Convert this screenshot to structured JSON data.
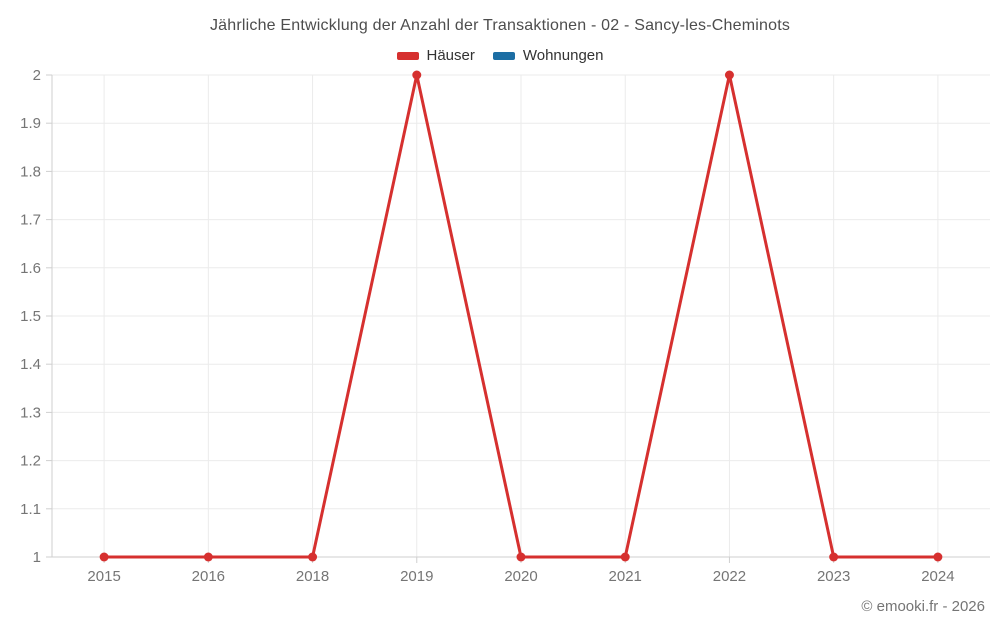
{
  "title": "Jährliche Entwicklung der Anzahl der Transaktionen - 02 - Sancy-les-Cheminots",
  "footer": "© emooki.fr - 2026",
  "legend": [
    {
      "label": "Häuser",
      "color": "#d6302f"
    },
    {
      "label": "Wohnungen",
      "color": "#1c6ea4"
    }
  ],
  "colors": {
    "series_red": "#d6302f",
    "series_blue": "#1c6ea4",
    "gridline": "#ebebeb",
    "axis_line": "#cfcfcf",
    "tick_text": "#757575",
    "title_text": "#4d4d4d",
    "legend_text": "#333333",
    "background": "#ffffff"
  },
  "chart_data": {
    "type": "line",
    "title": "Jährliche Entwicklung der Anzahl der Transaktionen - 02 - Sancy-les-Cheminots",
    "categories": [
      "2015",
      "2016",
      "2018",
      "2019",
      "2020",
      "2021",
      "2022",
      "2023",
      "2024"
    ],
    "series": [
      {
        "name": "Häuser",
        "color": "#d6302f",
        "values": [
          1,
          1,
          1,
          2,
          1,
          1,
          2,
          1,
          1
        ]
      },
      {
        "name": "Wohnungen",
        "color": "#1c6ea4",
        "values": []
      }
    ],
    "xlabel": "",
    "ylabel": "",
    "ylim": [
      1,
      2
    ],
    "ytick_step": 0.1,
    "ytick_labels": [
      "1",
      "1.1",
      "1.2",
      "1.3",
      "1.4",
      "1.5",
      "1.6",
      "1.7",
      "1.8",
      "1.9",
      "2"
    ],
    "grid": true,
    "legend_position": "top",
    "marker": "circle"
  }
}
